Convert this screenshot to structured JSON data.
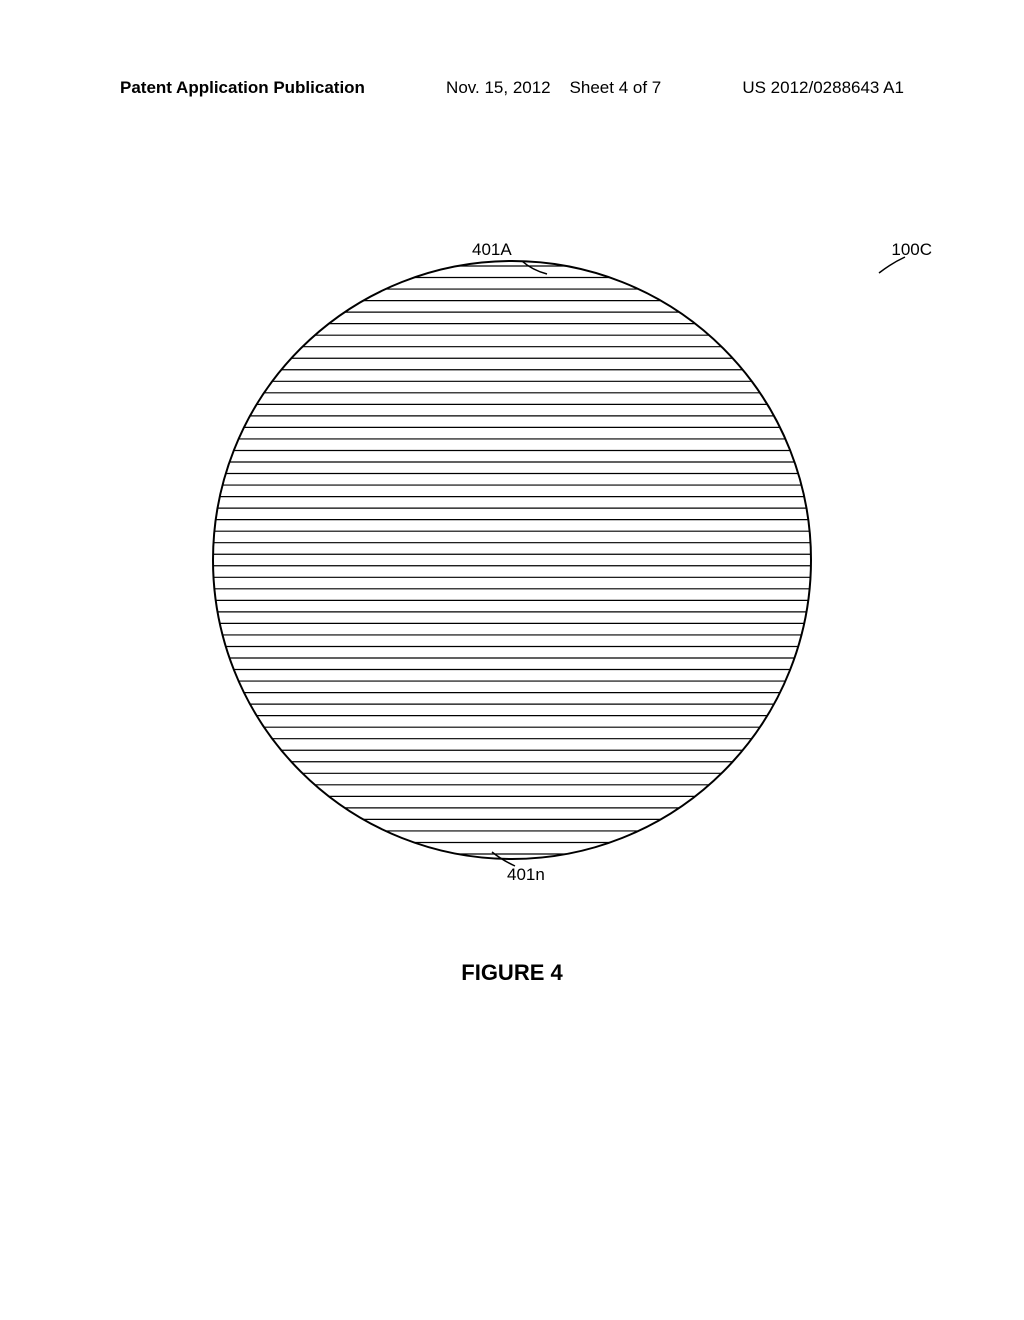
{
  "header": {
    "publication_type": "Patent Application Publication",
    "date": "Nov. 15, 2012",
    "sheet_info": "Sheet 4 of 7",
    "publication_number": "US 2012/0288643 A1"
  },
  "figure": {
    "caption": "FIGURE 4",
    "labels": {
      "top_left": "401A",
      "top_right": "100C",
      "bottom": "401n"
    },
    "circle": {
      "diameter": 600,
      "stroke_color": "#000000",
      "stroke_width": 2,
      "background": "#ffffff",
      "line_count": 52,
      "line_color": "#000000",
      "line_stroke_width": 1.2
    },
    "leader_curves": {
      "stroke": "#000000",
      "stroke_width": 1.5
    }
  },
  "colors": {
    "page_bg": "#ffffff",
    "text": "#000000"
  },
  "typography": {
    "header_fontsize": 17,
    "label_fontsize": 17,
    "caption_fontsize": 22
  }
}
